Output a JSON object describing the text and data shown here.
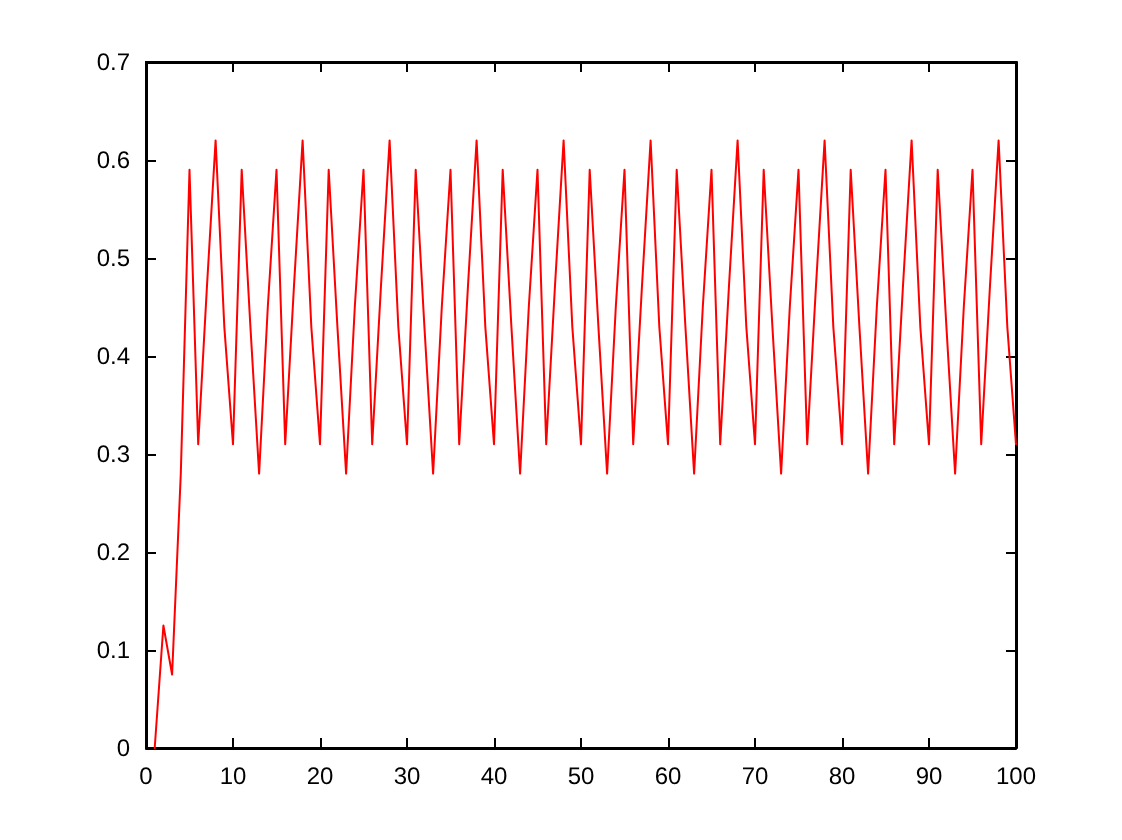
{
  "chart_data": {
    "type": "line",
    "color": "#ff0000",
    "marker": "none",
    "line_style": "solid",
    "grid": false,
    "x": [
      1,
      2,
      3,
      4,
      5,
      6,
      7,
      8,
      9,
      10,
      11,
      12,
      13,
      14,
      15,
      16,
      17,
      18,
      19,
      20,
      21,
      22,
      23,
      24,
      25,
      26,
      27,
      28,
      29,
      30,
      31,
      32,
      33,
      34,
      35,
      36,
      37,
      38,
      39,
      40,
      41,
      42,
      43,
      44,
      45,
      46,
      47,
      48,
      49,
      50,
      51,
      52,
      53,
      54,
      55,
      56,
      57,
      58,
      59,
      60,
      61,
      62,
      63,
      64,
      65,
      66,
      67,
      68,
      69,
      70,
      71,
      72,
      73,
      74,
      75,
      76,
      77,
      78,
      79,
      80,
      81,
      82,
      83,
      84,
      85,
      86,
      87,
      88,
      89,
      90,
      91,
      92,
      93,
      94,
      95,
      96,
      97,
      98,
      99,
      100
    ],
    "values": [
      0,
      0.125,
      0.075,
      0.28,
      0.59,
      0.31,
      0.47,
      0.62,
      0.43,
      0.31,
      0.59,
      0.43,
      0.28,
      0.45,
      0.59,
      0.31,
      0.47,
      0.62,
      0.43,
      0.31,
      0.59,
      0.43,
      0.28,
      0.45,
      0.59,
      0.31,
      0.47,
      0.62,
      0.43,
      0.31,
      0.59,
      0.43,
      0.28,
      0.45,
      0.59,
      0.31,
      0.47,
      0.62,
      0.43,
      0.31,
      0.59,
      0.43,
      0.28,
      0.45,
      0.59,
      0.31,
      0.47,
      0.62,
      0.43,
      0.31,
      0.59,
      0.43,
      0.28,
      0.45,
      0.59,
      0.31,
      0.47,
      0.62,
      0.43,
      0.31,
      0.59,
      0.43,
      0.28,
      0.45,
      0.59,
      0.31,
      0.47,
      0.62,
      0.43,
      0.31,
      0.59,
      0.43,
      0.28,
      0.45,
      0.59,
      0.31,
      0.47,
      0.62,
      0.43,
      0.31,
      0.59,
      0.43,
      0.28,
      0.45,
      0.59,
      0.31,
      0.47,
      0.62,
      0.43,
      0.31,
      0.59,
      0.43,
      0.28,
      0.45,
      0.59,
      0.31,
      0.47,
      0.62,
      0.43,
      0.31
    ],
    "xlim": [
      0,
      100
    ],
    "xticks": [
      0,
      10,
      20,
      30,
      40,
      50,
      60,
      70,
      80,
      90,
      100
    ],
    "ylim": [
      0,
      0.7
    ],
    "yticks": [
      0,
      0.1,
      0.2,
      0.3,
      0.4,
      0.5,
      0.6,
      0.7
    ]
  }
}
